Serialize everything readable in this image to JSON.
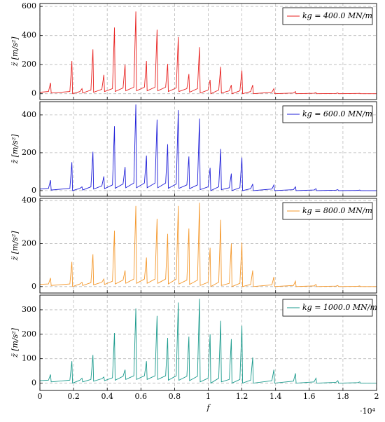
{
  "chart_data": [
    {
      "type": "line",
      "ylabel": "z̈ [m/s²]",
      "x": [
        0,
        510,
        630,
        670,
        1780,
        1900,
        1940,
        2380,
        2500,
        2540,
        3030,
        3150,
        3190,
        3680,
        3800,
        3840,
        4310,
        4430,
        4470,
        4940,
        5060,
        5100,
        5580,
        5700,
        5740,
        6210,
        6330,
        6370,
        6840,
        6960,
        7000,
        7470,
        7590,
        7630,
        8100,
        8220,
        8260,
        8730,
        8850,
        8890,
        9360,
        9480,
        9520,
        9990,
        10110,
        10150,
        10620,
        10740,
        10780,
        11250,
        11370,
        11410,
        11880,
        12000,
        12040,
        12520,
        12640,
        12680,
        13780,
        13900,
        13940,
        15060,
        15180,
        15220,
        16280,
        16400,
        16440,
        17580,
        17700,
        17740,
        18880,
        19000,
        19040,
        20000
      ],
      "series": [
        {
          "name": "kg = 400.0 MN/m",
          "color": "#e8211f",
          "values": [
            10,
            15,
            75,
            5,
            15,
            225,
            0,
            15,
            35,
            5,
            25,
            305,
            10,
            30,
            130,
            15,
            35,
            455,
            15,
            40,
            200,
            20,
            45,
            565,
            20,
            45,
            225,
            20,
            45,
            440,
            20,
            45,
            205,
            15,
            40,
            390,
            15,
            35,
            135,
            10,
            35,
            320,
            5,
            25,
            95,
            0,
            25,
            185,
            5,
            20,
            60,
            0,
            20,
            160,
            0,
            15,
            60,
            0,
            10,
            35,
            0,
            5,
            15,
            0,
            3,
            8,
            0,
            2,
            5,
            0,
            2,
            3,
            0,
            0
          ]
        }
      ],
      "xlim": [
        0,
        20000
      ],
      "xticks": [
        0,
        2000,
        4000,
        6000,
        8000,
        10000,
        12000,
        14000,
        16000,
        18000,
        20000
      ],
      "ylim": [
        -40,
        620
      ],
      "yticks": [
        0,
        200,
        400,
        600
      ],
      "grid": true
    },
    {
      "type": "line",
      "ylabel": "z̈ [m/s²]",
      "x": [
        0,
        510,
        630,
        670,
        1780,
        1900,
        1940,
        2380,
        2500,
        2540,
        3030,
        3150,
        3190,
        3680,
        3800,
        3840,
        4310,
        4430,
        4470,
        4940,
        5060,
        5100,
        5580,
        5700,
        5740,
        6210,
        6330,
        6370,
        6840,
        6960,
        7000,
        7470,
        7590,
        7630,
        8100,
        8220,
        8260,
        8730,
        8850,
        8890,
        9360,
        9480,
        9520,
        9990,
        10110,
        10150,
        10620,
        10740,
        10780,
        11250,
        11370,
        11410,
        11880,
        12000,
        12040,
        12520,
        12640,
        12680,
        13780,
        13900,
        13940,
        15060,
        15180,
        15220,
        16280,
        16400,
        16440,
        17580,
        17700,
        17740,
        18880,
        19000,
        19040,
        20000
      ],
      "series": [
        {
          "name": "kg = 600.0 MN/m",
          "color": "#1f1fd8",
          "values": [
            8,
            12,
            55,
            3,
            12,
            150,
            0,
            12,
            20,
            3,
            20,
            205,
            8,
            25,
            75,
            10,
            30,
            340,
            12,
            35,
            125,
            15,
            40,
            455,
            15,
            40,
            185,
            15,
            40,
            375,
            15,
            40,
            245,
            12,
            35,
            425,
            12,
            30,
            180,
            10,
            30,
            380,
            5,
            20,
            120,
            0,
            20,
            220,
            5,
            15,
            90,
            0,
            15,
            175,
            0,
            10,
            35,
            0,
            8,
            30,
            0,
            5,
            20,
            0,
            3,
            10,
            0,
            2,
            5,
            0,
            1,
            3,
            0,
            0
          ]
        }
      ],
      "xlim": [
        0,
        20000
      ],
      "xticks": [
        0,
        2000,
        4000,
        6000,
        8000,
        10000,
        12000,
        14000,
        16000,
        18000,
        20000
      ],
      "ylim": [
        -30,
        470
      ],
      "yticks": [
        0,
        200,
        400
      ],
      "grid": true
    },
    {
      "type": "line",
      "ylabel": "z̈ [m/s²]",
      "x": [
        0,
        510,
        630,
        670,
        1780,
        1900,
        1940,
        2380,
        2500,
        2540,
        3030,
        3150,
        3190,
        3680,
        3800,
        3840,
        4310,
        4430,
        4470,
        4940,
        5060,
        5100,
        5580,
        5700,
        5740,
        6210,
        6330,
        6370,
        6840,
        6960,
        7000,
        7470,
        7590,
        7630,
        8100,
        8220,
        8260,
        8730,
        8850,
        8890,
        9360,
        9480,
        9520,
        9990,
        10110,
        10150,
        10620,
        10740,
        10780,
        11250,
        11370,
        11410,
        11880,
        12000,
        12040,
        12520,
        12640,
        12680,
        13780,
        13900,
        13940,
        15060,
        15180,
        15220,
        16280,
        16400,
        16440,
        17580,
        17700,
        17740,
        18880,
        19000,
        19040,
        20000
      ],
      "series": [
        {
          "name": "kg = 800.0 MN/m",
          "color": "#f4982c",
          "values": [
            10,
            12,
            40,
            5,
            12,
            115,
            0,
            12,
            20,
            5,
            18,
            150,
            8,
            20,
            35,
            10,
            25,
            260,
            12,
            30,
            75,
            15,
            35,
            375,
            15,
            35,
            135,
            15,
            35,
            315,
            15,
            35,
            245,
            12,
            35,
            375,
            12,
            30,
            270,
            10,
            30,
            390,
            5,
            20,
            180,
            0,
            20,
            310,
            5,
            15,
            200,
            0,
            15,
            205,
            0,
            10,
            75,
            0,
            8,
            45,
            0,
            5,
            25,
            0,
            3,
            10,
            0,
            2,
            5,
            0,
            1,
            3,
            0,
            0
          ]
        }
      ],
      "xlim": [
        0,
        20000
      ],
      "xticks": [
        0,
        2000,
        4000,
        6000,
        8000,
        10000,
        12000,
        14000,
        16000,
        18000,
        20000
      ],
      "ylim": [
        -30,
        410
      ],
      "yticks": [
        0,
        200,
        400
      ],
      "grid": true
    },
    {
      "type": "line",
      "ylabel": "z̈ [m/s²]",
      "xlabel": "f",
      "x_multiplier": "·10⁴",
      "x": [
        0,
        510,
        630,
        670,
        1780,
        1900,
        1940,
        2380,
        2500,
        2540,
        3030,
        3150,
        3190,
        3680,
        3800,
        3840,
        4310,
        4430,
        4470,
        4940,
        5060,
        5100,
        5580,
        5700,
        5740,
        6210,
        6330,
        6370,
        6840,
        6960,
        7000,
        7470,
        7590,
        7630,
        8100,
        8220,
        8260,
        8730,
        8850,
        8890,
        9360,
        9480,
        9520,
        9990,
        10110,
        10150,
        10620,
        10740,
        10780,
        11250,
        11370,
        11410,
        11880,
        12000,
        12040,
        12520,
        12640,
        12680,
        13780,
        13900,
        13940,
        15060,
        15180,
        15220,
        16280,
        16400,
        16440,
        17580,
        17700,
        17740,
        18880,
        19000,
        19040,
        20000
      ],
      "series": [
        {
          "name": "kg = 1000.0 MN/m",
          "color": "#1a9a8c",
          "values": [
            10,
            12,
            35,
            5,
            12,
            90,
            0,
            12,
            20,
            5,
            15,
            115,
            8,
            18,
            25,
            10,
            22,
            205,
            12,
            28,
            55,
            15,
            30,
            305,
            15,
            30,
            90,
            15,
            30,
            275,
            15,
            30,
            185,
            12,
            30,
            330,
            12,
            28,
            190,
            10,
            28,
            345,
            5,
            20,
            200,
            0,
            20,
            255,
            5,
            15,
            180,
            0,
            15,
            235,
            0,
            12,
            105,
            0,
            10,
            55,
            0,
            8,
            40,
            0,
            5,
            20,
            0,
            3,
            10,
            0,
            2,
            5,
            0,
            0
          ]
        }
      ],
      "xlim": [
        0,
        20000
      ],
      "xticks": [
        {
          "value": 0,
          "label": "0"
        },
        {
          "value": 2000,
          "label": "0.2"
        },
        {
          "value": 4000,
          "label": "0.4"
        },
        {
          "value": 6000,
          "label": "0.6"
        },
        {
          "value": 8000,
          "label": "0.8"
        },
        {
          "value": 10000,
          "label": "1"
        },
        {
          "value": 12000,
          "label": "1.2"
        },
        {
          "value": 14000,
          "label": "1.4"
        },
        {
          "value": 16000,
          "label": "1.6"
        },
        {
          "value": 18000,
          "label": "1.8"
        },
        {
          "value": 20000,
          "label": "2"
        }
      ],
      "ylim": [
        -30,
        360
      ],
      "yticks": [
        0,
        100,
        200,
        300
      ],
      "grid": true
    }
  ]
}
